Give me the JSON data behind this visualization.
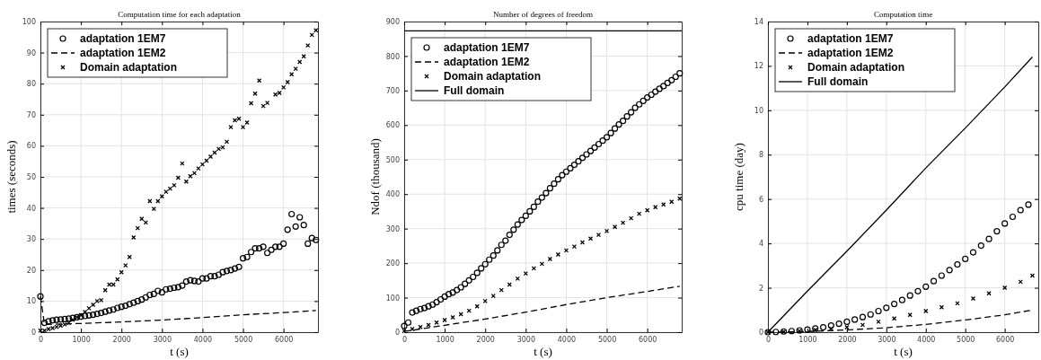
{
  "chart_data": [
    {
      "type": "scatter",
      "title": "Computation time for each adaptation",
      "xlabel": "t (s)",
      "ylabel": "times (seconds)",
      "xlim": [
        0,
        6850
      ],
      "xticks": [
        0,
        1000,
        2000,
        3000,
        4000,
        5000,
        6000
      ],
      "ylim": [
        0,
        100
      ],
      "yticks": [
        0,
        10,
        20,
        30,
        40,
        50,
        60,
        70,
        80,
        90,
        100
      ],
      "grid": true,
      "legend": "top left",
      "series": [
        {
          "name": "adaptation 1EM7",
          "marker": "circle",
          "color": "#000000",
          "x": [
            0,
            100,
            200,
            300,
            400,
            500,
            600,
            700,
            800,
            900,
            1000,
            1100,
            1200,
            1300,
            1400,
            1500,
            1600,
            1700,
            1800,
            1900,
            2000,
            2100,
            2200,
            2300,
            2400,
            2500,
            2600,
            2700,
            2800,
            2900,
            3000,
            3100,
            3200,
            3300,
            3400,
            3500,
            3600,
            3700,
            3800,
            3900,
            4000,
            4100,
            4200,
            4300,
            4400,
            4500,
            4600,
            4700,
            4800,
            4900,
            5000,
            5100,
            5200,
            5300,
            5400,
            5500,
            5600,
            5700,
            5800,
            5900,
            6000,
            6100,
            6200,
            6300,
            6400,
            6500,
            6600,
            6700,
            6800
          ],
          "values": [
            11.5,
            3,
            3.5,
            3.8,
            4,
            4.1,
            4.2,
            4.4,
            4.6,
            4.8,
            5,
            5.2,
            5.4,
            5.6,
            5.9,
            6.2,
            6.6,
            7,
            7.3,
            7.8,
            8.2,
            8.5,
            9,
            9.5,
            10,
            10.5,
            11.2,
            12,
            12.3,
            13.3,
            12.8,
            13.8,
            14,
            14.3,
            14.5,
            15,
            16.3,
            16.7,
            16.5,
            16.3,
            17.3,
            17.3,
            18,
            18,
            18.5,
            19.3,
            19.7,
            20,
            20.5,
            21,
            23.8,
            24.2,
            25.8,
            27,
            27,
            27.5,
            25.5,
            26.5,
            27.5,
            27.5,
            28.5,
            33,
            38,
            34,
            37,
            34.5,
            28.5,
            30.3,
            29.7
          ]
        },
        {
          "name": "adaptation 1EM2",
          "type": "line",
          "line_style": "dashed",
          "color": "#000000",
          "x": [
            0,
            100,
            1000,
            2000,
            3000,
            4000,
            5000,
            6000,
            6800
          ],
          "values": [
            11.5,
            2.5,
            2.8,
            3.3,
            3.9,
            4.7,
            5.6,
            6.3,
            7
          ]
        },
        {
          "name": "Domain adaptation",
          "marker": "cross",
          "color": "#000000",
          "x": [
            0,
            100,
            200,
            300,
            400,
            500,
            600,
            700,
            800,
            900,
            1000,
            1100,
            1200,
            1300,
            1400,
            1500,
            1600,
            1700,
            1800,
            1900,
            2000,
            2100,
            2200,
            2300,
            2400,
            2500,
            2600,
            2700,
            2800,
            2900,
            3000,
            3100,
            3200,
            3300,
            3400,
            3500,
            3600,
            3700,
            3800,
            3900,
            4000,
            4100,
            4200,
            4300,
            4400,
            4500,
            4600,
            4700,
            4800,
            4900,
            5000,
            5100,
            5200,
            5300,
            5400,
            5500,
            5600,
            5700,
            5800,
            5900,
            6000,
            6100,
            6200,
            6300,
            6400,
            6500,
            6600,
            6700,
            6800
          ],
          "values": [
            0.5,
            0.5,
            1,
            1.3,
            1.7,
            2.1,
            2.5,
            3,
            4,
            4.8,
            5.5,
            6.5,
            7.7,
            8.8,
            10,
            10.3,
            13.5,
            15.3,
            15.3,
            17,
            19.3,
            21.5,
            24.2,
            30.5,
            33.5,
            36.5,
            35.3,
            42.2,
            39.7,
            42.2,
            43.7,
            45.2,
            46.2,
            47.3,
            49.7,
            54.3,
            48.5,
            50.2,
            51.2,
            52.7,
            54,
            55.2,
            56.5,
            57.8,
            59,
            59.5,
            61.3,
            66,
            68.2,
            68.7,
            66,
            67.5,
            73.7,
            76.8,
            81,
            72.8,
            73.8,
            null,
            76.5,
            77,
            78.8,
            80.5,
            83,
            84.8,
            87,
            88.8,
            92.3,
            95.7,
            97.2
          ]
        }
      ]
    },
    {
      "type": "scatter",
      "title": "Number of degrees of freedom",
      "xlabel": "t (s)",
      "ylabel": "Ndof (thousand)",
      "xlim": [
        0,
        6850
      ],
      "xticks": [
        0,
        1000,
        2000,
        3000,
        4000,
        5000,
        6000
      ],
      "ylim": [
        0,
        900
      ],
      "yticks": [
        0,
        100,
        200,
        300,
        400,
        500,
        600,
        700,
        800,
        900
      ],
      "grid": true,
      "legend": "top left",
      "series": [
        {
          "name": "adaptation 1EM7",
          "marker": "circle",
          "color": "#000000",
          "x": [
            0,
            100,
            200,
            300,
            400,
            500,
            600,
            700,
            800,
            900,
            1000,
            1100,
            1200,
            1300,
            1400,
            1500,
            1600,
            1700,
            1800,
            1900,
            2000,
            2100,
            2200,
            2300,
            2400,
            2500,
            2600,
            2700,
            2800,
            2900,
            3000,
            3100,
            3200,
            3300,
            3400,
            3500,
            3600,
            3700,
            3800,
            3900,
            4000,
            4100,
            4200,
            4300,
            4400,
            4500,
            4600,
            4700,
            4800,
            4900,
            5000,
            5100,
            5200,
            5300,
            5400,
            5500,
            5600,
            5700,
            5800,
            5900,
            6000,
            6100,
            6200,
            6300,
            6400,
            6500,
            6600,
            6700,
            6800
          ],
          "values": [
            18,
            28,
            57,
            62,
            67,
            70,
            75,
            80,
            87,
            95,
            103,
            110,
            115,
            122,
            130,
            140,
            150,
            160,
            172,
            185,
            197,
            210,
            222,
            237,
            253,
            265,
            282,
            297,
            312,
            325,
            337,
            350,
            363,
            378,
            390,
            403,
            417,
            430,
            443,
            455,
            465,
            475,
            485,
            495,
            505,
            515,
            525,
            535,
            545,
            555,
            565,
            577,
            590,
            602,
            612,
            625,
            637,
            650,
            660,
            670,
            680,
            688,
            697,
            705,
            713,
            722,
            730,
            740,
            750
          ]
        },
        {
          "name": "adaptation 1EM2",
          "type": "line",
          "line_style": "dashed",
          "color": "#000000",
          "x": [
            0,
            1000,
            2000,
            3000,
            4000,
            5000,
            6000,
            6800
          ],
          "values": [
            2,
            20,
            38,
            58,
            80,
            100,
            118,
            133
          ]
        },
        {
          "name": "Domain adaptation",
          "marker": "cross",
          "color": "#000000",
          "x": [
            0,
            200,
            400,
            600,
            800,
            1000,
            1200,
            1400,
            1600,
            1800,
            2000,
            2200,
            2400,
            2600,
            2800,
            3000,
            3200,
            3400,
            3600,
            3800,
            4000,
            4200,
            4400,
            4600,
            4800,
            5000,
            5200,
            5400,
            5600,
            5800,
            6000,
            6200,
            6400,
            6600,
            6800
          ],
          "values": [
            3,
            9,
            15,
            21,
            28,
            35,
            43,
            52,
            62,
            75,
            90,
            105,
            122,
            138,
            155,
            170,
            185,
            198,
            212,
            225,
            237,
            248,
            260,
            271,
            282,
            293,
            305,
            317,
            330,
            343,
            353,
            362,
            370,
            378,
            387
          ]
        },
        {
          "name": "Full domain",
          "type": "line",
          "line_style": "solid",
          "color": "#000000",
          "x": [
            0,
            6850
          ],
          "values": [
            873,
            873
          ]
        }
      ]
    },
    {
      "type": "scatter",
      "title": "Computation time",
      "xlabel": "t (s)",
      "ylabel": "cpu time (day)",
      "xlim": [
        0,
        6850
      ],
      "xticks": [
        0,
        1000,
        2000,
        3000,
        4000,
        5000,
        6000
      ],
      "ylim": [
        0,
        14
      ],
      "yticks": [
        0,
        2,
        4,
        6,
        8,
        10,
        12,
        14
      ],
      "grid": true,
      "legend": "top left",
      "series": [
        {
          "name": "adaptation 1EM7",
          "marker": "circle",
          "color": "#000000",
          "x": [
            0,
            200,
            400,
            600,
            800,
            1000,
            1200,
            1400,
            1600,
            1800,
            2000,
            2200,
            2400,
            2600,
            2800,
            3000,
            3200,
            3400,
            3600,
            3800,
            4000,
            4200,
            4400,
            4600,
            4800,
            5000,
            5200,
            5400,
            5600,
            5800,
            6000,
            6200,
            6400,
            6600
          ],
          "values": [
            0,
            0.01,
            0.03,
            0.05,
            0.08,
            0.12,
            0.17,
            0.22,
            0.3,
            0.38,
            0.47,
            0.57,
            0.68,
            0.8,
            0.95,
            1.1,
            1.27,
            1.45,
            1.65,
            1.85,
            2.05,
            2.3,
            2.55,
            2.8,
            3.05,
            3.3,
            3.6,
            3.9,
            4.2,
            4.55,
            4.9,
            5.2,
            5.5,
            5.75
          ]
        },
        {
          "name": "adaptation 1EM2",
          "type": "line",
          "line_style": "dashed",
          "color": "#000000",
          "x": [
            0,
            1000,
            2000,
            3000,
            4000,
            5000,
            6000,
            6700
          ],
          "values": [
            0,
            0.03,
            0.1,
            0.2,
            0.35,
            0.55,
            0.78,
            1
          ]
        },
        {
          "name": "Domain adaptation",
          "marker": "cross",
          "color": "#000000",
          "x": [
            0,
            400,
            800,
            1200,
            1600,
            2000,
            2400,
            2800,
            3200,
            3600,
            4000,
            4400,
            4800,
            5200,
            5600,
            6000,
            6400,
            6700
          ],
          "values": [
            0,
            0.02,
            0.05,
            0.1,
            0.15,
            0.22,
            0.33,
            0.47,
            0.62,
            0.78,
            0.95,
            1.12,
            1.3,
            1.52,
            1.75,
            2,
            2.27,
            2.55
          ]
        },
        {
          "name": "Full domain",
          "type": "line",
          "line_style": "solid",
          "color": "#000000",
          "x": [
            0,
            1000,
            2000,
            3000,
            4000,
            5000,
            6000,
            6700
          ],
          "values": [
            0,
            1.85,
            3.65,
            5.5,
            7.4,
            9.2,
            11.05,
            12.4
          ]
        }
      ]
    }
  ]
}
